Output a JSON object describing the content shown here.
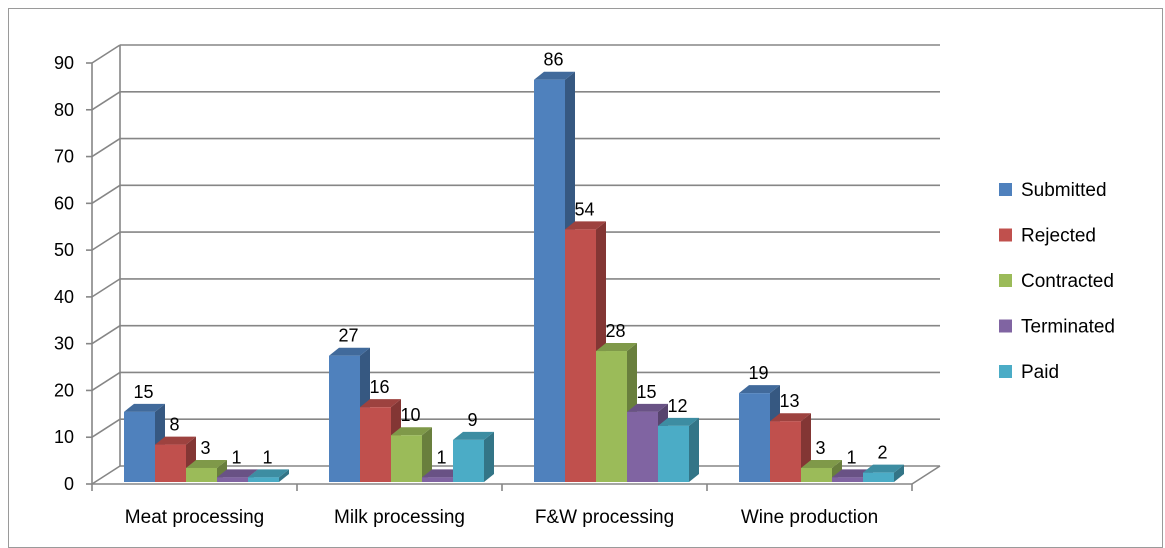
{
  "chart_data": {
    "type": "bar",
    "categories": [
      "Meat processing",
      "Milk processing",
      "F&W processing",
      "Wine production"
    ],
    "series": [
      {
        "name": "Submitted",
        "values": [
          15,
          27,
          86,
          19
        ],
        "color": "#4f81bd"
      },
      {
        "name": "Rejected",
        "values": [
          8,
          16,
          54,
          13
        ],
        "color": "#c0504d"
      },
      {
        "name": "Contracted",
        "values": [
          3,
          10,
          28,
          3
        ],
        "color": "#9bbb59"
      },
      {
        "name": "Terminated",
        "values": [
          1,
          1,
          15,
          1
        ],
        "color": "#8064a2"
      },
      {
        "name": "Paid",
        "values": [
          1,
          9,
          12,
          2
        ],
        "color": "#4bacc6"
      }
    ],
    "yticks": [
      "0",
      "10",
      "20",
      "30",
      "40",
      "50",
      "60",
      "70",
      "80",
      "90"
    ],
    "ylim": [
      0,
      90
    ],
    "data_labels": [
      [
        "15",
        "8",
        "3",
        "1",
        "1"
      ],
      [
        "27",
        "16",
        "10",
        "1",
        "9"
      ],
      [
        "86",
        "54",
        "28",
        "15",
        "12"
      ],
      [
        "19",
        "13",
        "3",
        "1",
        "2"
      ]
    ],
    "grid": true,
    "legend_position": "right",
    "bar_style": "3d-clustered"
  }
}
